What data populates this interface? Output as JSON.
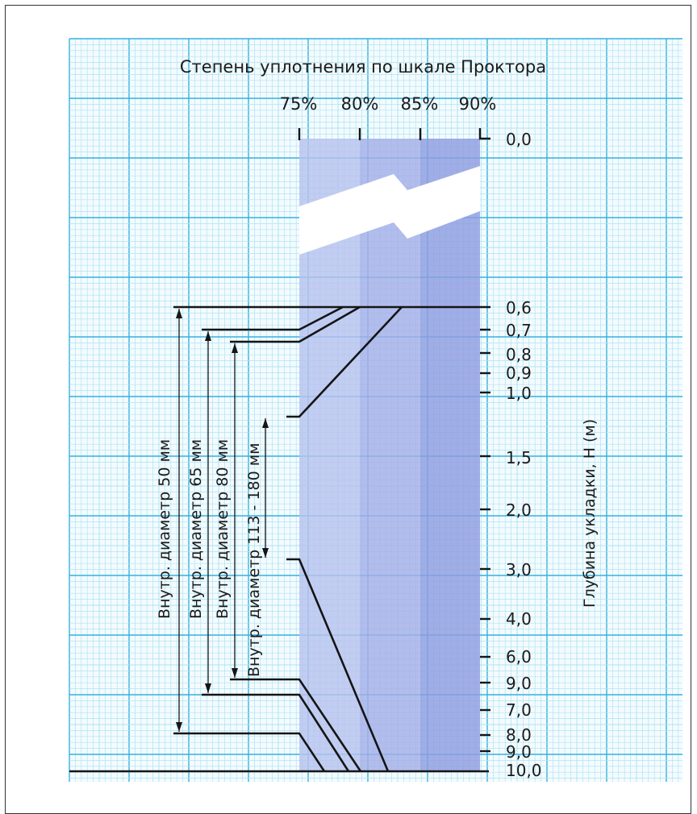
{
  "diagram": {
    "title": "Степень уплотнения по шкале Проктора",
    "compaction_labels": [
      "75%",
      "80%",
      "85%",
      "90%"
    ],
    "axis_label": "Глубина укладки, H (м)",
    "depth_labels": [
      "0,0",
      "0,6",
      "0,7",
      "0,8",
      "0,9",
      "1,0",
      "1,5",
      "2,0",
      "3,0",
      "4,0",
      "6,0",
      "9,0",
      "7,0",
      "8,0",
      "9,0",
      "10,0"
    ],
    "diameter_labels": [
      "Внутр. диаметр 50  мм",
      "Внутр. диаметр 65  мм",
      "Внутр. диаметр 80  мм",
      "Внутр. диаметр 113 - 180  мм"
    ],
    "colors": {
      "grid_fine": "#aee3f2",
      "grid_major": "#35b2dd",
      "band_75_80": "#b7c2ee",
      "band_80_85": "#a3afe8",
      "band_85_90": "#8f9ce0",
      "line": "#151515"
    }
  }
}
